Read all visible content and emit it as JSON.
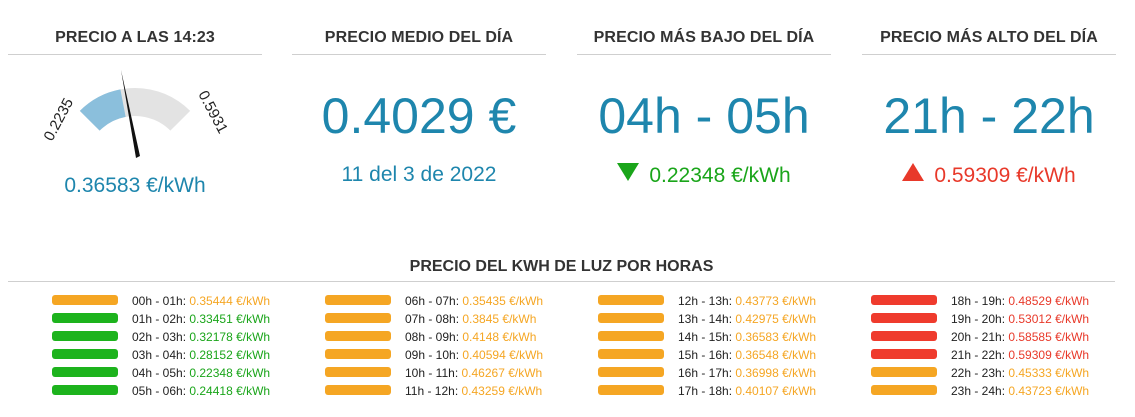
{
  "cards": {
    "current": {
      "title": "PRECIO A LAS 14:23",
      "value": "0.36583 €/kWh",
      "gauge_min": "0.2235",
      "gauge_max": "0.5931",
      "gauge_level": 0.38
    },
    "average": {
      "title": "PRECIO MEDIO DEL DÍA",
      "value": "0.4029 €",
      "date": "11 del 3 de 2022"
    },
    "lowest": {
      "title": "PRECIO MÁS BAJO DEL DÍA",
      "range": "04h - 05h",
      "price": "0.22348 €/kWh",
      "icon": "triangle-down-icon"
    },
    "highest": {
      "title": "PRECIO MÁS ALTO DEL DÍA",
      "range": "21h - 22h",
      "price": "0.59309 €/kWh",
      "icon": "triangle-up-icon"
    }
  },
  "hours_title": "PRECIO DEL KWH DE LUZ POR HORAS",
  "colors": {
    "orange": "#f5a623",
    "green": "#1db31d",
    "red": "#ef3b2d",
    "blue": "#1e86ad"
  },
  "hours": [
    {
      "range": "00h - 01h:",
      "price": "0.35444 €/kWh",
      "level": "orange"
    },
    {
      "range": "01h - 02h:",
      "price": "0.33451 €/kWh",
      "level": "green"
    },
    {
      "range": "02h - 03h:",
      "price": "0.32178 €/kWh",
      "level": "green"
    },
    {
      "range": "03h - 04h:",
      "price": "0.28152 €/kWh",
      "level": "green"
    },
    {
      "range": "04h - 05h:",
      "price": "0.22348 €/kWh",
      "level": "green"
    },
    {
      "range": "05h - 06h:",
      "price": "0.24418 €/kWh",
      "level": "green"
    },
    {
      "range": "06h - 07h:",
      "price": "0.35435 €/kWh",
      "level": "orange"
    },
    {
      "range": "07h - 08h:",
      "price": "0.3845 €/kWh",
      "level": "orange"
    },
    {
      "range": "08h - 09h:",
      "price": "0.4148 €/kWh",
      "level": "orange"
    },
    {
      "range": "09h - 10h:",
      "price": "0.40594 €/kWh",
      "level": "orange"
    },
    {
      "range": "10h - 11h:",
      "price": "0.46267 €/kWh",
      "level": "orange"
    },
    {
      "range": "11h - 12h:",
      "price": "0.43259 €/kWh",
      "level": "orange"
    },
    {
      "range": "12h - 13h:",
      "price": "0.43773 €/kWh",
      "level": "orange"
    },
    {
      "range": "13h - 14h:",
      "price": "0.42975 €/kWh",
      "level": "orange"
    },
    {
      "range": "14h - 15h:",
      "price": "0.36583 €/kWh",
      "level": "orange"
    },
    {
      "range": "15h - 16h:",
      "price": "0.36548 €/kWh",
      "level": "orange"
    },
    {
      "range": "16h - 17h:",
      "price": "0.36998 €/kWh",
      "level": "orange"
    },
    {
      "range": "17h - 18h:",
      "price": "0.40107 €/kWh",
      "level": "orange"
    },
    {
      "range": "18h - 19h:",
      "price": "0.48529 €/kWh",
      "level": "red"
    },
    {
      "range": "19h - 20h:",
      "price": "0.53012 €/kWh",
      "level": "red"
    },
    {
      "range": "20h - 21h:",
      "price": "0.58585 €/kWh",
      "level": "red"
    },
    {
      "range": "21h - 22h:",
      "price": "0.59309 €/kWh",
      "level": "red"
    },
    {
      "range": "22h - 23h:",
      "price": "0.45333 €/kWh",
      "level": "orange"
    },
    {
      "range": "23h - 24h:",
      "price": "0.43723 €/kWh",
      "level": "orange"
    }
  ]
}
